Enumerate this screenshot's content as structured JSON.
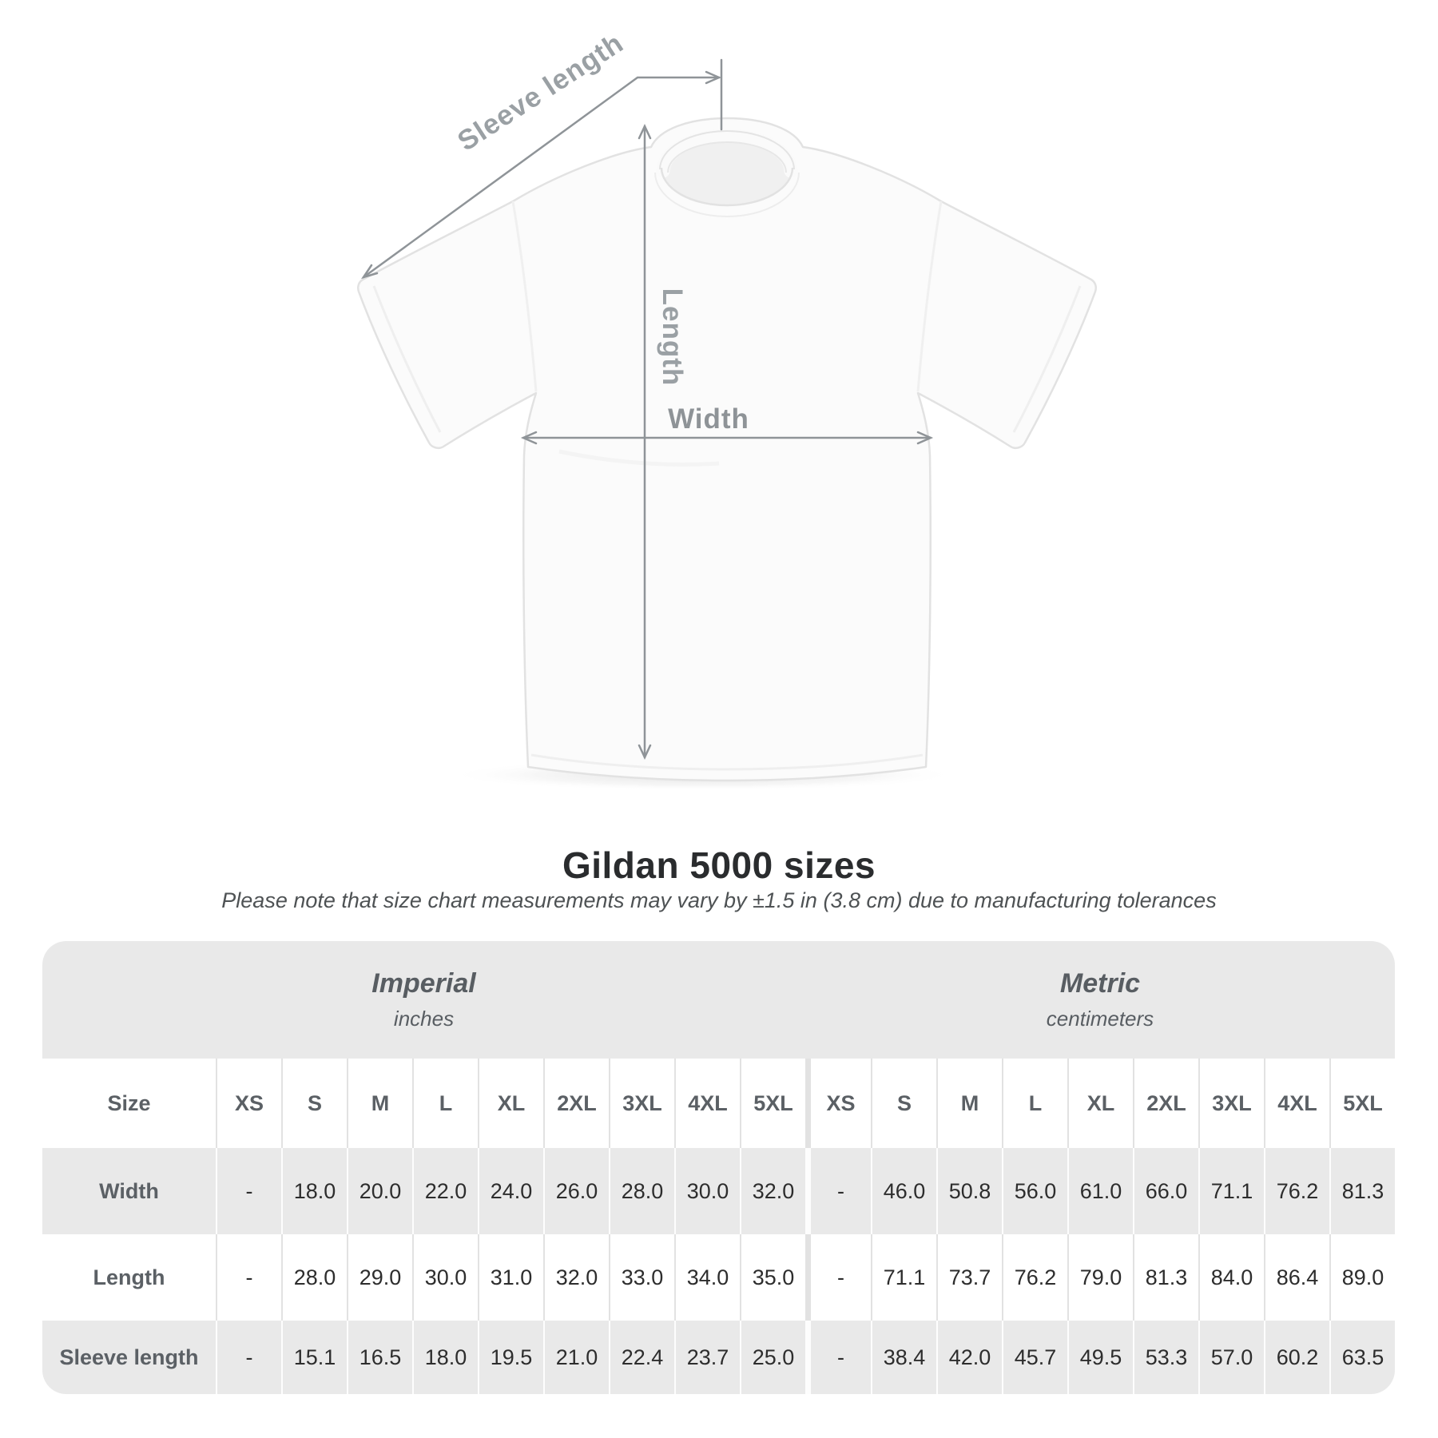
{
  "diagram": {
    "labels": {
      "sleeve_length": "Sleeve length",
      "length": "Length",
      "width": "Width"
    }
  },
  "heading": {
    "title": "Gildan 5000 sizes",
    "note": "Please note that size chart measurements may vary by ±1.5 in (3.8 cm) due to manufacturing tolerances"
  },
  "table": {
    "units": [
      {
        "title": "Imperial",
        "subtitle": "inches"
      },
      {
        "title": "Metric",
        "subtitle": "centimeters"
      }
    ],
    "size_header": {
      "label": "Size",
      "imperial_sizes": [
        "XS",
        "S",
        "M",
        "L",
        "XL",
        "2XL",
        "3XL",
        "4XL",
        "5XL"
      ],
      "metric_sizes": [
        "XS",
        "S",
        "M",
        "L",
        "XL",
        "2XL",
        "3XL",
        "4XL",
        "5XL"
      ]
    },
    "rows": [
      {
        "label": "Width",
        "imperial": [
          "-",
          "18.0",
          "20.0",
          "22.0",
          "24.0",
          "26.0",
          "28.0",
          "30.0",
          "32.0"
        ],
        "metric": [
          "-",
          "46.0",
          "50.8",
          "56.0",
          "61.0",
          "66.0",
          "71.1",
          "76.2",
          "81.3"
        ]
      },
      {
        "label": "Length",
        "imperial": [
          "-",
          "28.0",
          "29.0",
          "30.0",
          "31.0",
          "32.0",
          "33.0",
          "34.0",
          "35.0"
        ],
        "metric": [
          "-",
          "71.1",
          "73.7",
          "76.2",
          "79.0",
          "81.3",
          "84.0",
          "86.4",
          "89.0"
        ]
      },
      {
        "label": "Sleeve length",
        "imperial": [
          "-",
          "15.1",
          "16.5",
          "18.0",
          "19.5",
          "21.0",
          "22.4",
          "23.7",
          "25.0"
        ],
        "metric": [
          "-",
          "38.4",
          "42.0",
          "45.7",
          "49.5",
          "53.3",
          "57.0",
          "60.2",
          "63.5"
        ]
      }
    ]
  }
}
